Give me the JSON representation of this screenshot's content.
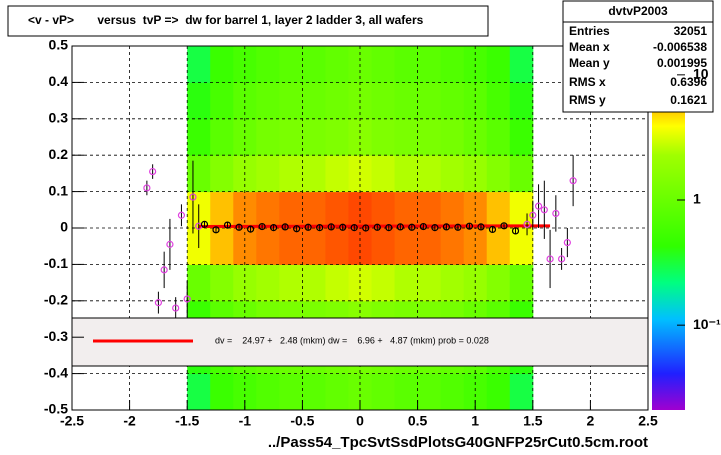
{
  "chart_data": {
    "type": "heatmap",
    "title": "<v - vP>       versus  tvP =>  dw for barrel 1, layer 2 ladder 3, all wafers",
    "x_label": "../Pass54_TpcSvtSsdPlotsG40GNFP25rCut0.5cm.root",
    "xlim": [
      -2.5,
      2.5
    ],
    "ylim": [
      -0.5,
      0.5
    ],
    "xticks": [
      -2.5,
      -2,
      -1.5,
      -1,
      -0.5,
      0,
      0.5,
      1,
      1.5,
      2,
      2.5
    ],
    "yticks": [
      -0.5,
      -0.4,
      -0.3,
      -0.2,
      -0.1,
      0,
      0.1,
      0.2,
      0.3,
      0.4,
      0.5
    ],
    "grid": true,
    "zlog": true,
    "zlim": [
      0.021,
      17
    ],
    "zticks": [
      {
        "value": 10,
        "label": "10"
      },
      {
        "value": 1,
        "label": "1"
      },
      {
        "value": 0.1,
        "label": "10⁻¹"
      }
    ],
    "heatmap": {
      "xbins": [
        -1.5,
        -1.3,
        -1.1,
        -0.9,
        -0.7,
        -0.5,
        -0.3,
        -0.1,
        0.1,
        0.3,
        0.5,
        0.7,
        0.9,
        1.1,
        1.3,
        1.5
      ],
      "ybins": [
        -0.5,
        -0.4,
        -0.3,
        -0.2,
        -0.1,
        0,
        0.1,
        0.2,
        0.3,
        0.4,
        0.5
      ],
      "counts": [
        [
          0.3,
          0.5,
          0.6,
          0.7,
          0.8,
          0.8,
          0.9,
          1,
          0.9,
          0.8,
          0.8,
          0.7,
          0.6,
          0.5,
          0.3
        ],
        [
          0.4,
          0.6,
          0.8,
          0.9,
          1,
          1,
          1.1,
          1.2,
          1.1,
          1,
          1,
          0.9,
          0.8,
          0.6,
          0.4
        ],
        [
          0.5,
          0.8,
          1,
          1.2,
          1.3,
          1.3,
          1.4,
          1.6,
          1.4,
          1.3,
          1.3,
          1.2,
          1,
          0.8,
          0.5
        ],
        [
          1,
          1.5,
          2,
          2.3,
          2.5,
          2.5,
          2.8,
          3,
          2.8,
          2.5,
          2.5,
          2.3,
          2,
          1.5,
          1
        ],
        [
          3.6,
          5.4,
          7.2,
          8.1,
          9,
          9,
          9.9,
          10.8,
          9.9,
          9,
          9,
          8.1,
          7.2,
          5.4,
          3.6
        ],
        [
          3.6,
          5.4,
          7.2,
          8.1,
          9,
          9,
          9.9,
          10.8,
          9.9,
          9,
          9,
          8.1,
          7.2,
          5.4,
          3.6
        ],
        [
          1,
          1.5,
          2,
          2.3,
          2.5,
          2.5,
          2.8,
          3,
          2.8,
          2.5,
          2.5,
          2.3,
          2,
          1.5,
          1
        ],
        [
          0.5,
          0.8,
          1,
          1.2,
          1.3,
          1.3,
          1.4,
          1.6,
          1.4,
          1.3,
          1.3,
          1.2,
          1,
          0.8,
          0.5
        ],
        [
          0.4,
          0.6,
          0.8,
          0.9,
          1,
          1,
          1.1,
          1.2,
          1.1,
          1,
          1,
          0.9,
          0.8,
          0.6,
          0.4
        ],
        [
          0.3,
          0.5,
          0.6,
          0.7,
          0.8,
          0.8,
          0.9,
          1,
          0.9,
          0.8,
          0.8,
          0.7,
          0.6,
          0.5,
          0.3
        ]
      ]
    },
    "series": [
      {
        "color": "#e040e0",
        "x": [
          -1.85,
          -1.8,
          -1.75,
          -1.7,
          -1.65,
          -1.6,
          -1.55,
          -1.5,
          -1.45,
          -1.4,
          1.45,
          1.5,
          1.55,
          1.6,
          1.65,
          1.7,
          1.75,
          1.8,
          1.85
        ],
        "values": [
          0.11,
          0.155,
          -0.205,
          -0.115,
          -0.045,
          -0.22,
          0.035,
          -0.195,
          0.085,
          0.005,
          0.01,
          0.035,
          0.06,
          0.05,
          -0.085,
          0.04,
          -0.085,
          -0.04,
          0.13
        ],
        "errors": [
          0.02,
          0.02,
          0.03,
          0.05,
          0.07,
          0.03,
          0.03,
          0.05,
          0.1,
          0.06,
          0.03,
          0.04,
          0.06,
          0.08,
          0.08,
          0.05,
          0.03,
          0.04,
          0.07
        ]
      },
      {
        "color": "#000000",
        "x": [
          -1.35,
          -1.25,
          -1.15,
          -1.05,
          -0.95,
          -0.85,
          -0.75,
          -0.65,
          -0.55,
          -0.45,
          -0.35,
          -0.25,
          -0.15,
          -0.05,
          0.05,
          0.15,
          0.25,
          0.35,
          0.45,
          0.55,
          0.65,
          0.75,
          0.85,
          0.95,
          1.05,
          1.15,
          1.25,
          1.35
        ],
        "values": [
          0.01,
          -0.005,
          0.008,
          0.002,
          -0.003,
          0.004,
          0.001,
          0.003,
          -0.002,
          0.002,
          0.001,
          0.003,
          0.002,
          0.001,
          0,
          0.002,
          0.001,
          0.003,
          0.002,
          0.004,
          0.001,
          0.003,
          0.002,
          0.005,
          0.003,
          -0.004,
          0.006,
          -0.008
        ],
        "errors": [
          0.008,
          0.008,
          0.008,
          0.008,
          0.008,
          0.008,
          0.008,
          0.008,
          0.008,
          0.008,
          0.008,
          0.008,
          0.008,
          0.008,
          0.008,
          0.008,
          0.008,
          0.008,
          0.008,
          0.008,
          0.008,
          0.008,
          0.008,
          0.008,
          0.008,
          0.008,
          0.008,
          0.008
        ]
      }
    ],
    "fit_line": {
      "color": "#ff0000",
      "x": [
        -1.4,
        1.65
      ],
      "values": [
        0.004,
        0.006
      ]
    },
    "legend_text": "dv =    24.97 +   2.48 (mkm) dw =    6.96 +   4.87 (mkm) prob = 0.028",
    "stats": {
      "name": "dvtvP2003",
      "rows": [
        [
          "Entries",
          "32051"
        ],
        [
          "Mean x",
          "-0.006538"
        ],
        [
          "Mean y",
          "0.001995"
        ],
        [
          "RMS x",
          "0.6396"
        ],
        [
          "RMS y",
          "0.1621"
        ]
      ]
    }
  }
}
